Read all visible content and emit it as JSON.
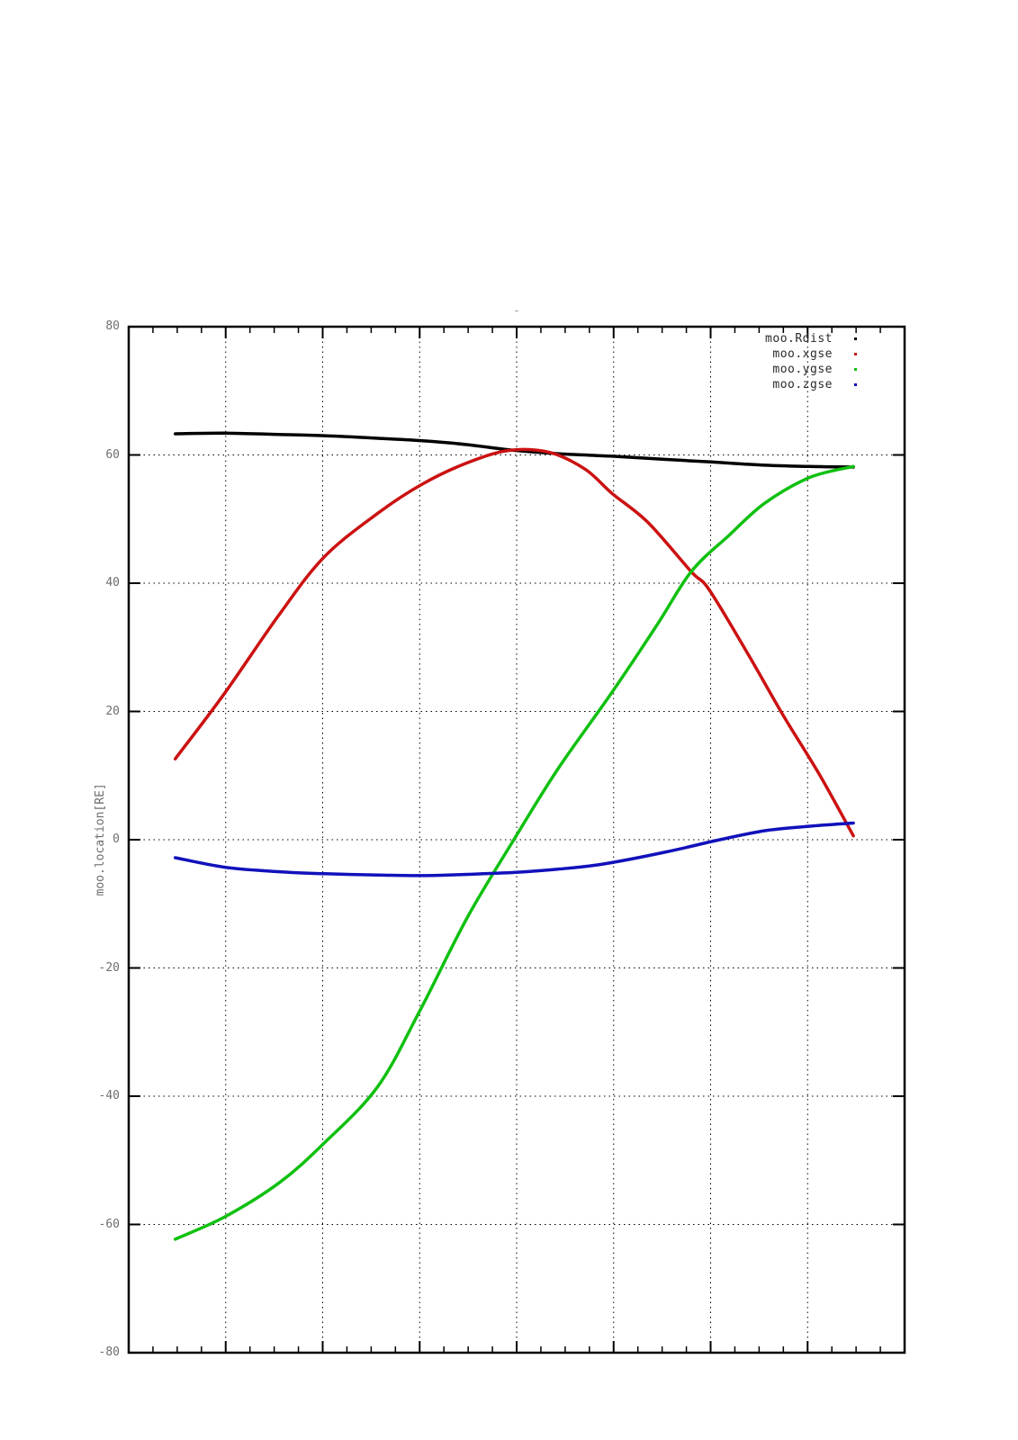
{
  "page": {
    "background": "#ffffff"
  },
  "chart_data": {
    "type": "line",
    "title": "-",
    "xlabel": "",
    "ylabel": "moo.location[RE]",
    "ylim": [
      -80,
      80
    ],
    "ytick_step": 20,
    "ytick_labels": [
      "80",
      "60",
      "40",
      "20",
      "0",
      "-20",
      "-40",
      "-60",
      "-80"
    ],
    "x_axis": {
      "tick_labels_shown": false,
      "major_divisions": 8,
      "minor_per_major": 4
    },
    "grid": "dotted black, horizontal every 20 RE and vertical at each x major tick",
    "legend_position": "top-right-inside",
    "axis_color": "#000000",
    "tick_label_color": "#6e6e6e",
    "series": [
      {
        "name": "moo.Rdist",
        "color": "#000000",
        "points_frac_re": [
          [
            0.06,
            63.3
          ],
          [
            0.124,
            63.4
          ],
          [
            0.194,
            63.2
          ],
          [
            0.252,
            63.0
          ],
          [
            0.321,
            62.6
          ],
          [
            0.379,
            62.2
          ],
          [
            0.437,
            61.6
          ],
          [
            0.49,
            60.8
          ],
          [
            0.553,
            60.2
          ],
          [
            0.623,
            59.8
          ],
          [
            0.693,
            59.3
          ],
          [
            0.751,
            58.9
          ],
          [
            0.82,
            58.4
          ],
          [
            0.878,
            58.2
          ],
          [
            0.934,
            58.1
          ]
        ]
      },
      {
        "name": "moo.xgse",
        "color": "#cc1111",
        "points_frac_re": [
          [
            0.06,
            12.6
          ],
          [
            0.124,
            22.9
          ],
          [
            0.194,
            35.1
          ],
          [
            0.252,
            44.1
          ],
          [
            0.321,
            50.9
          ],
          [
            0.379,
            55.5
          ],
          [
            0.437,
            58.8
          ],
          [
            0.49,
            60.7
          ],
          [
            0.542,
            60.4
          ],
          [
            0.588,
            57.8
          ],
          [
            0.623,
            54.0
          ],
          [
            0.669,
            49.5
          ],
          [
            0.725,
            41.8
          ],
          [
            0.748,
            39.0
          ],
          [
            0.797,
            29.2
          ],
          [
            0.843,
            19.5
          ],
          [
            0.89,
            10.2
          ],
          [
            0.934,
            0.6
          ]
        ]
      },
      {
        "name": "moo.ygse",
        "color": "#10c010",
        "points_frac_re": [
          [
            0.06,
            -62.3
          ],
          [
            0.124,
            -58.8
          ],
          [
            0.194,
            -53.5
          ],
          [
            0.252,
            -47.3
          ],
          [
            0.321,
            -38.5
          ],
          [
            0.376,
            -26.5
          ],
          [
            0.437,
            -12.0
          ],
          [
            0.499,
            0.5
          ],
          [
            0.553,
            11.0
          ],
          [
            0.623,
            23.0
          ],
          [
            0.681,
            33.5
          ],
          [
            0.725,
            41.8
          ],
          [
            0.774,
            47.5
          ],
          [
            0.82,
            52.5
          ],
          [
            0.878,
            56.5
          ],
          [
            0.934,
            58.2
          ]
        ]
      },
      {
        "name": "moo.zgse",
        "color": "#1111bb",
        "points_frac_re": [
          [
            0.06,
            -2.8
          ],
          [
            0.124,
            -4.3
          ],
          [
            0.194,
            -5.0
          ],
          [
            0.252,
            -5.3
          ],
          [
            0.321,
            -5.5
          ],
          [
            0.379,
            -5.6
          ],
          [
            0.437,
            -5.4
          ],
          [
            0.499,
            -5.1
          ],
          [
            0.553,
            -4.6
          ],
          [
            0.611,
            -3.8
          ],
          [
            0.693,
            -1.9
          ],
          [
            0.762,
            0.0
          ],
          [
            0.82,
            1.4
          ],
          [
            0.878,
            2.1
          ],
          [
            0.934,
            2.6
          ]
        ]
      }
    ]
  }
}
